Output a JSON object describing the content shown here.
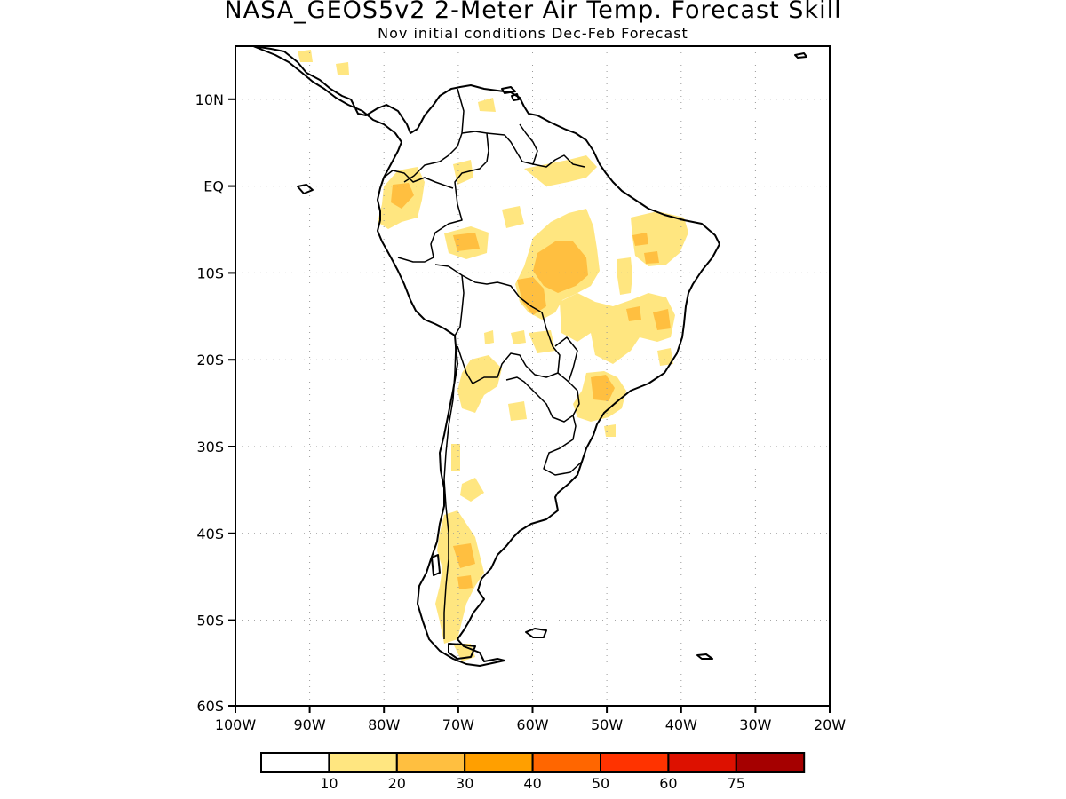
{
  "title": "NASA_GEOS5v2 2-Meter Air Temp. Forecast Skill",
  "subtitle": "Nov initial conditions  Dec-Feb Forecast",
  "map": {
    "lon_range": [
      -100,
      -20
    ],
    "lat_range": [
      -60,
      15
    ],
    "x_ticks": [
      "100W",
      "90W",
      "80W",
      "70W",
      "60W",
      "50W",
      "40W",
      "30W",
      "20W"
    ],
    "y_ticks": [
      "10N",
      "EQ",
      "10S",
      "20S",
      "30S",
      "40S",
      "50S",
      "60S"
    ],
    "grid": "dotted"
  },
  "colorbar": {
    "labels": [
      "10",
      "20",
      "30",
      "40",
      "50",
      "60",
      "75"
    ],
    "colors": [
      "#ffffff",
      "#ffe680",
      "#ffbf40",
      "#ff9f00",
      "#ff6600",
      "#ff3300",
      "#dd1100",
      "#a50000"
    ]
  },
  "skill_colors": {
    "level_10_20": "#ffe680",
    "level_20_30": "#ffbf40"
  }
}
